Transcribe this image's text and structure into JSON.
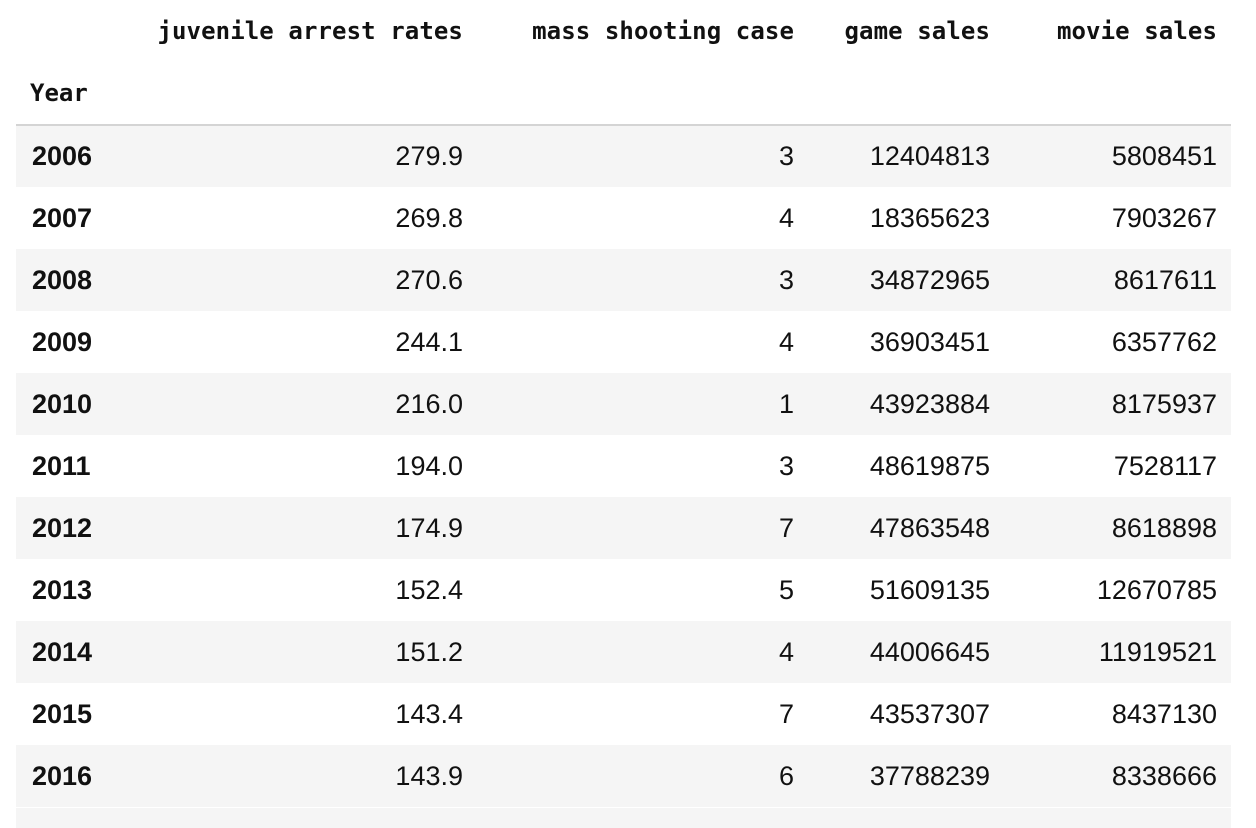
{
  "table": {
    "columns": [
      "juvenile arrest rates",
      "mass shooting case",
      "game sales",
      "movie sales"
    ],
    "index_name": "Year",
    "rows": [
      {
        "year": "2006",
        "values": [
          "279.9",
          "3",
          "12404813",
          "5808451"
        ]
      },
      {
        "year": "2007",
        "values": [
          "269.8",
          "4",
          "18365623",
          "7903267"
        ]
      },
      {
        "year": "2008",
        "values": [
          "270.6",
          "3",
          "34872965",
          "8617611"
        ]
      },
      {
        "year": "2009",
        "values": [
          "244.1",
          "4",
          "36903451",
          "6357762"
        ]
      },
      {
        "year": "2010",
        "values": [
          "216.0",
          "1",
          "43923884",
          "8175937"
        ]
      },
      {
        "year": "2011",
        "values": [
          "194.0",
          "3",
          "48619875",
          "7528117"
        ]
      },
      {
        "year": "2012",
        "values": [
          "174.9",
          "7",
          "47863548",
          "8618898"
        ]
      },
      {
        "year": "2013",
        "values": [
          "152.4",
          "5",
          "51609135",
          "12670785"
        ]
      },
      {
        "year": "2014",
        "values": [
          "151.2",
          "4",
          "44006645",
          "11919521"
        ]
      },
      {
        "year": "2015",
        "values": [
          "143.4",
          "7",
          "43537307",
          "8437130"
        ]
      },
      {
        "year": "2016",
        "values": [
          "143.9",
          "6",
          "37788239",
          "8338666"
        ]
      }
    ]
  }
}
